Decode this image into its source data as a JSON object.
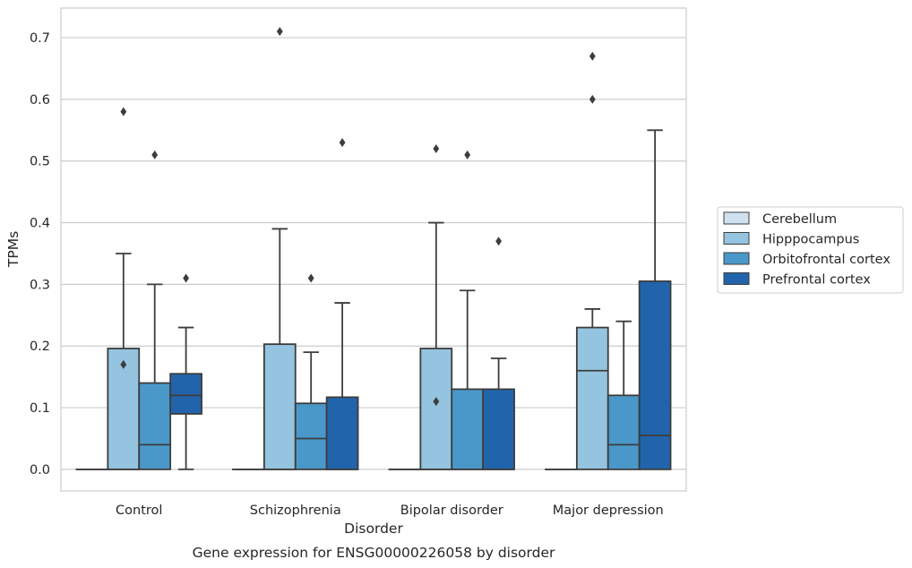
{
  "chart_data": {
    "type": "box",
    "caption": "Gene expression for ENSG00000226058 by disorder",
    "xlabel": "Disorder",
    "ylabel": "TPMs",
    "ylim": [
      -0.035,
      0.748
    ],
    "yticks": [
      0.0,
      0.1,
      0.2,
      0.3,
      0.4,
      0.5,
      0.6,
      0.7
    ],
    "ytick_labels": [
      "0.0",
      "0.1",
      "0.2",
      "0.3",
      "0.4",
      "0.5",
      "0.6",
      "0.7"
    ],
    "grid": "horizontal",
    "legend_position": "right",
    "categories": [
      "Control",
      "Schizophrenia",
      "Bipolar disorder",
      "Major depression"
    ],
    "series": [
      {
        "name": "Cerebellum",
        "color": "#d0e1f2",
        "boxes": [
          {
            "whislo": 0,
            "q1": 0,
            "med": 0,
            "q3": 0,
            "whishi": 0,
            "fliers": []
          },
          {
            "whislo": 0,
            "q1": 0,
            "med": 0,
            "q3": 0,
            "whishi": 0,
            "fliers": []
          },
          {
            "whislo": 0,
            "q1": 0,
            "med": 0,
            "q3": 0,
            "whishi": 0,
            "fliers": []
          },
          {
            "whislo": 0,
            "q1": 0,
            "med": 0,
            "q3": 0,
            "whishi": 0,
            "fliers": []
          }
        ]
      },
      {
        "name": "Hipppocampus",
        "color": "#94c4df",
        "boxes": [
          {
            "whislo": 0,
            "q1": 0,
            "med": 0,
            "q3": 0.196,
            "whishi": 0.35,
            "fliers": [
              0.17,
              0.58
            ]
          },
          {
            "whislo": 0,
            "q1": 0,
            "med": 0,
            "q3": 0.203,
            "whishi": 0.39,
            "fliers": [
              0.71
            ]
          },
          {
            "whislo": 0,
            "q1": 0,
            "med": 0,
            "q3": 0.196,
            "whishi": 0.4,
            "fliers": [
              0.11,
              0.52
            ]
          },
          {
            "whislo": 0,
            "q1": 0,
            "med": 0.16,
            "q3": 0.23,
            "whishi": 0.26,
            "fliers": [
              0.6,
              0.67
            ]
          }
        ]
      },
      {
        "name": "Orbitofrontal cortex",
        "color": "#4a98c9",
        "boxes": [
          {
            "whislo": 0,
            "q1": 0,
            "med": 0.04,
            "q3": 0.14,
            "whishi": 0.3,
            "fliers": [
              0.51
            ]
          },
          {
            "whislo": 0,
            "q1": 0,
            "med": 0.05,
            "q3": 0.107,
            "whishi": 0.19,
            "fliers": [
              0.31
            ]
          },
          {
            "whislo": 0,
            "q1": 0,
            "med": 0,
            "q3": 0.13,
            "whishi": 0.29,
            "fliers": [
              0.51
            ]
          },
          {
            "whislo": 0,
            "q1": 0,
            "med": 0.04,
            "q3": 0.12,
            "whishi": 0.24,
            "fliers": []
          }
        ]
      },
      {
        "name": "Prefrontal cortex",
        "color": "#2164ab",
        "boxes": [
          {
            "whislo": 0,
            "q1": 0.09,
            "med": 0.12,
            "q3": 0.155,
            "whishi": 0.23,
            "fliers": [
              0.31
            ]
          },
          {
            "whislo": 0,
            "q1": 0,
            "med": 0,
            "q3": 0.117,
            "whishi": 0.27,
            "fliers": [
              0.53
            ]
          },
          {
            "whislo": 0,
            "q1": 0,
            "med": 0,
            "q3": 0.13,
            "whishi": 0.18,
            "fliers": [
              0.37
            ]
          },
          {
            "whislo": 0,
            "q1": 0,
            "med": 0.055,
            "q3": 0.305,
            "whishi": 0.55,
            "fliers": []
          }
        ]
      }
    ]
  }
}
